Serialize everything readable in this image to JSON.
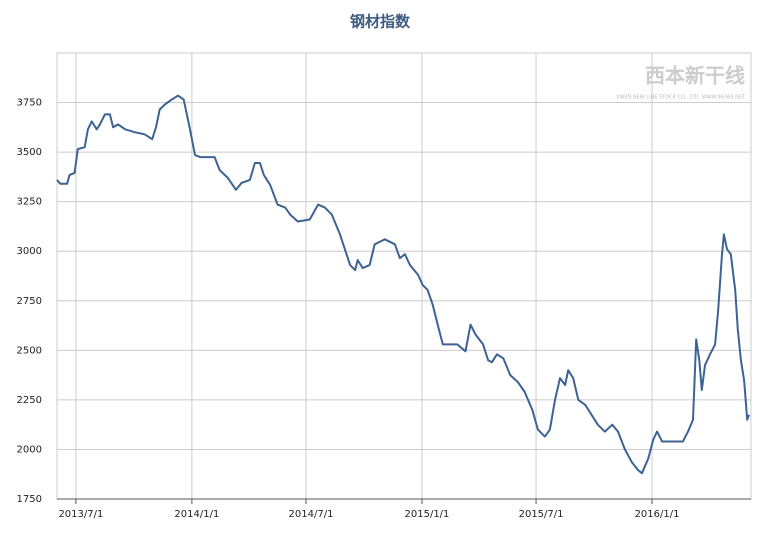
{
  "chart_data": {
    "type": "line",
    "title": "钢材指数",
    "watermark": "西本新干线",
    "watermark_subtitle": "XIBEN NEW LINE STOCK CO., LTD.  WWW.96369.NET",
    "xlim": [
      "2013-06-01",
      "2016-06-06"
    ],
    "xticks": [
      {
        "value": "2013-07-01",
        "label": "2013/7/1"
      },
      {
        "value": "2014-01-01",
        "label": "2014/1/1"
      },
      {
        "value": "2014-07-01",
        "label": "2014/7/1"
      },
      {
        "value": "2015-01-01",
        "label": "2015/1/1"
      },
      {
        "value": "2015-07-01",
        "label": "2015/7/1"
      },
      {
        "value": "2016-01-01",
        "label": "2016/1/1"
      }
    ],
    "ylim": [
      1750,
      4000
    ],
    "yticks": [
      1750,
      2000,
      2250,
      2500,
      2750,
      3000,
      3250,
      3500,
      3750
    ],
    "grid": true,
    "x": [
      "2013-06-01",
      "2013-06-06",
      "2013-06-17",
      "2013-06-21",
      "2013-06-29",
      "2013-07-04",
      "2013-07-15",
      "2013-07-20",
      "2013-07-26",
      "2013-08-03",
      "2013-08-08",
      "2013-08-16",
      "2013-08-24",
      "2013-08-29",
      "2013-09-06",
      "2013-09-17",
      "2013-10-03",
      "2013-10-18",
      "2013-10-30",
      "2013-11-05",
      "2013-11-11",
      "2013-11-19",
      "2013-11-30",
      "2013-12-10",
      "2013-12-19",
      "2013-12-29",
      "2014-01-06",
      "2014-01-14",
      "2014-02-06",
      "2014-02-14",
      "2014-02-27",
      "2014-03-12",
      "2014-03-21",
      "2014-04-03",
      "2014-04-11",
      "2014-04-19",
      "2014-04-25",
      "2014-05-05",
      "2014-05-17",
      "2014-05-29",
      "2014-06-06",
      "2014-06-18",
      "2014-07-07",
      "2014-07-20",
      "2014-07-31",
      "2014-08-11",
      "2014-08-24",
      "2014-09-09",
      "2014-09-17",
      "2014-09-21",
      "2014-09-29",
      "2014-10-10",
      "2014-10-18",
      "2014-11-03",
      "2014-11-19",
      "2014-11-27",
      "2014-12-05",
      "2014-12-13",
      "2014-12-26",
      "2015-01-02",
      "2015-01-10",
      "2015-01-18",
      "2015-01-26",
      "2015-02-03",
      "2015-02-26",
      "2015-03-11",
      "2015-03-19",
      "2015-03-27",
      "2015-04-08",
      "2015-04-16",
      "2015-04-22",
      "2015-04-30",
      "2015-05-10",
      "2015-05-21",
      "2015-06-02",
      "2015-06-13",
      "2015-06-25",
      "2015-07-04",
      "2015-07-15",
      "2015-07-23",
      "2015-07-31",
      "2015-08-08",
      "2015-08-16",
      "2015-08-21",
      "2015-08-29",
      "2015-09-06",
      "2015-09-17",
      "2015-09-25",
      "2015-10-07",
      "2015-10-18",
      "2015-10-30",
      "2015-11-08",
      "2015-11-19",
      "2015-11-30",
      "2015-12-10",
      "2015-12-16",
      "2015-12-26",
      "2016-01-03",
      "2016-01-09",
      "2016-01-17",
      "2016-01-30",
      "2016-02-19",
      "2016-02-27",
      "2016-03-06",
      "2016-03-11",
      "2016-03-16",
      "2016-03-20",
      "2016-03-25",
      "2016-04-02",
      "2016-04-10",
      "2016-04-15",
      "2016-04-21",
      "2016-04-24",
      "2016-04-29",
      "2016-05-05",
      "2016-05-12",
      "2016-05-16",
      "2016-05-21",
      "2016-05-26",
      "2016-05-31",
      "2016-06-03"
    ],
    "series": [
      {
        "name": "钢材指数",
        "color": "#3d6393",
        "values": [
          3360,
          3340,
          3340,
          3385,
          3395,
          3515,
          3525,
          3615,
          3655,
          3615,
          3640,
          3690,
          3690,
          3625,
          3640,
          3615,
          3600,
          3590,
          3565,
          3625,
          3715,
          3740,
          3765,
          3785,
          3765,
          3615,
          3485,
          3475,
          3475,
          3410,
          3370,
          3310,
          3345,
          3360,
          3445,
          3445,
          3385,
          3335,
          3235,
          3220,
          3185,
          3150,
          3160,
          3235,
          3220,
          3185,
          3085,
          2930,
          2905,
          2955,
          2915,
          2930,
          3035,
          3060,
          3035,
          2965,
          2985,
          2930,
          2880,
          2830,
          2805,
          2730,
          2630,
          2530,
          2530,
          2495,
          2630,
          2580,
          2530,
          2450,
          2440,
          2480,
          2460,
          2375,
          2340,
          2290,
          2200,
          2100,
          2065,
          2100,
          2250,
          2360,
          2325,
          2400,
          2360,
          2250,
          2225,
          2185,
          2125,
          2090,
          2125,
          2090,
          2000,
          1935,
          1895,
          1880,
          1955,
          2050,
          2090,
          2040,
          2040,
          2040,
          2090,
          2150,
          2555,
          2450,
          2300,
          2425,
          2480,
          2530,
          2705,
          2985,
          3085,
          3010,
          2985,
          2805,
          2605,
          2450,
          2350,
          2150,
          2175
        ]
      }
    ]
  }
}
